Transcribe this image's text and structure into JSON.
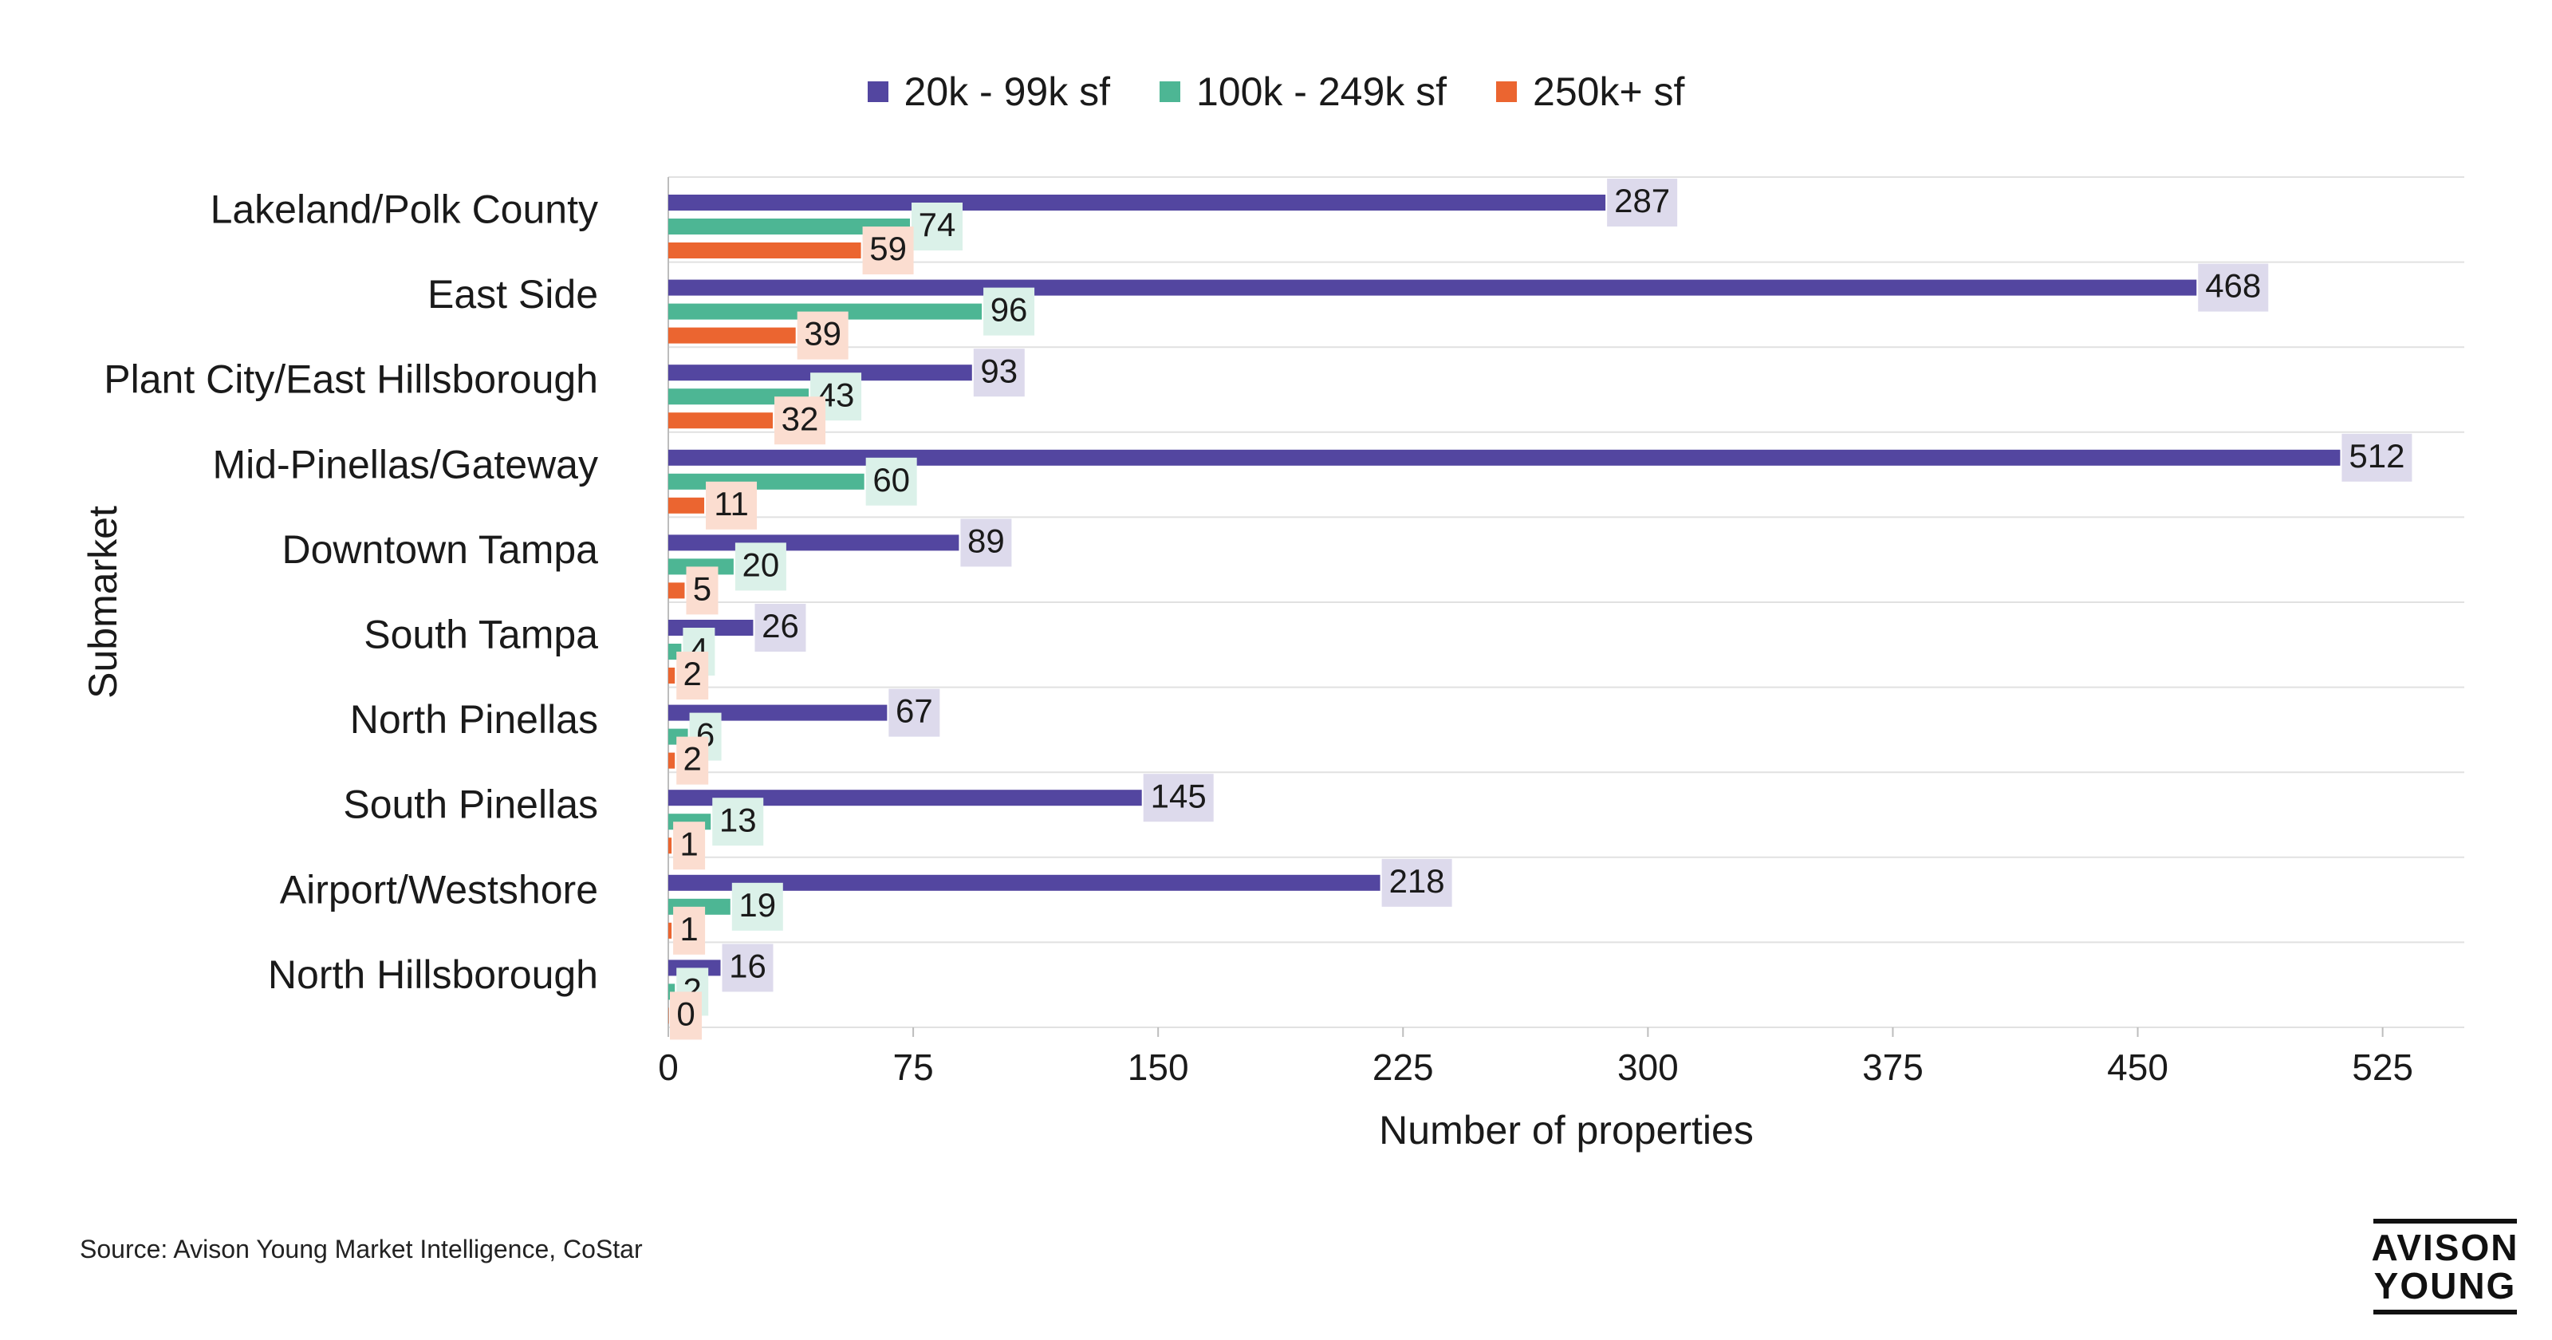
{
  "chart_data": {
    "type": "bar",
    "orientation": "horizontal",
    "categories": [
      "Lakeland/Polk County",
      "East Side",
      "Plant City/East Hillsborough",
      "Mid-Pinellas/Gateway",
      "Downtown Tampa",
      "South Tampa",
      "North Pinellas",
      "South Pinellas",
      "Airport/Westshore",
      "North Hillsborough"
    ],
    "series": [
      {
        "name": "20k - 99k sf",
        "color": "#5346A0",
        "label_bg": "#DDDAEC",
        "values": [
          287,
          468,
          93,
          512,
          89,
          26,
          67,
          145,
          218,
          16
        ]
      },
      {
        "name": "100k - 249k sf",
        "color": "#4DB694",
        "label_bg": "#DBF1E9",
        "values": [
          74,
          96,
          43,
          60,
          20,
          4,
          6,
          13,
          19,
          2
        ]
      },
      {
        "name": "250k+ sf",
        "color": "#EB6530",
        "label_bg": "#FBDDD0",
        "values": [
          59,
          39,
          32,
          11,
          5,
          2,
          2,
          1,
          1,
          0
        ]
      }
    ],
    "xlabel": "Number of properties",
    "ylabel": "Submarket",
    "xlim": [
      0,
      550
    ],
    "xticks": [
      "0",
      "75",
      "150",
      "225",
      "300",
      "375",
      "450",
      "525"
    ],
    "grid": "horizontal",
    "legend_position": "top"
  },
  "footer": {
    "source": "Source: Avison Young Market Intelligence, CoStar"
  },
  "logo": {
    "line1": "AVISON",
    "line2": "YOUNG"
  }
}
